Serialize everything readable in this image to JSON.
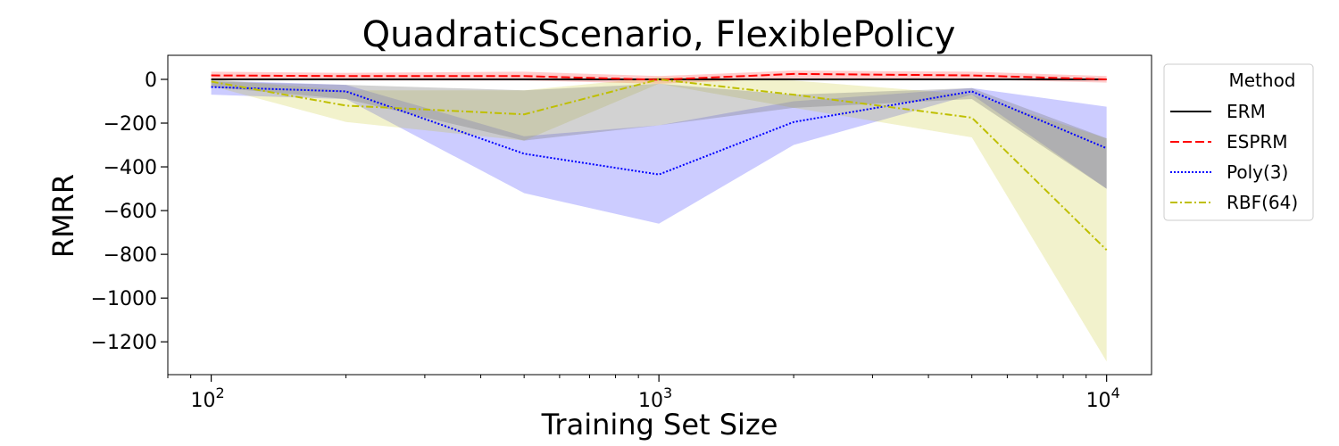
{
  "chart_data": {
    "type": "line",
    "title": "QuadraticScenario, FlexiblePolicy",
    "xlabel": "Training Set Size",
    "ylabel": "RMRR",
    "xscale": "log",
    "xlim": [
      80,
      12600
    ],
    "ylim": [
      -1350,
      110
    ],
    "x_ticks": [
      {
        "value": 100,
        "base": "10",
        "exp": "2"
      },
      {
        "value": 1000,
        "base": "10",
        "exp": "3"
      },
      {
        "value": 10000,
        "base": "10",
        "exp": "4"
      }
    ],
    "y_ticks": [
      {
        "value": 0,
        "label": "0"
      },
      {
        "value": -200,
        "label": "−200"
      },
      {
        "value": -400,
        "label": "−400"
      },
      {
        "value": -600,
        "label": "−600"
      },
      {
        "value": -800,
        "label": "−800"
      },
      {
        "value": -1000,
        "label": "−1000"
      },
      {
        "value": -1200,
        "label": "−1200"
      }
    ],
    "legend": {
      "title": "Method",
      "position": "outside-right"
    },
    "x": [
      100,
      200,
      500,
      1000,
      2000,
      5000,
      10000
    ],
    "series": [
      {
        "name": "ERM",
        "color": "#000000",
        "dash": "solid",
        "values": [
          0,
          0,
          0,
          0,
          0,
          0,
          0
        ],
        "lower": [
          -5,
          -5,
          -5,
          -5,
          -5,
          -5,
          -5
        ],
        "upper": [
          5,
          5,
          5,
          5,
          5,
          5,
          5
        ]
      },
      {
        "name": "ESPRM",
        "color": "#ff0000",
        "dash": "dashed",
        "fill": "#ff0000",
        "values": [
          18,
          15,
          15,
          -2,
          25,
          18,
          0
        ],
        "lower": [
          0,
          -5,
          -5,
          -20,
          5,
          0,
          -15
        ],
        "upper": [
          35,
          30,
          35,
          15,
          40,
          35,
          15
        ]
      },
      {
        "name": "Poly(3)",
        "color": "#0000ff",
        "dash": "dotted",
        "fill": "#0000ff",
        "values": [
          -35,
          -55,
          -340,
          -435,
          -195,
          -55,
          -315
        ],
        "lower": [
          -70,
          -90,
          -520,
          -660,
          -300,
          -70,
          -500
        ],
        "upper": [
          -5,
          -25,
          -260,
          -210,
          -100,
          -40,
          -125
        ]
      },
      {
        "name": "RBF(64)",
        "color": "#bfbf00",
        "dash": "dashdot",
        "fill": "#bfbf00",
        "values": [
          -10,
          -120,
          -160,
          0,
          -70,
          -175,
          -780
        ],
        "lower": [
          -30,
          -195,
          -280,
          -20,
          -130,
          -265,
          -1290
        ],
        "upper": [
          0,
          -50,
          -50,
          10,
          -5,
          -70,
          -270
        ]
      }
    ],
    "band_overlap": {
      "color": "#7f7f7f",
      "lower": [
        -35,
        -90,
        -280,
        -210,
        -130,
        -90,
        -500
      ],
      "upper": [
        -10,
        -25,
        -50,
        -20,
        -70,
        -40,
        -270
      ]
    }
  }
}
